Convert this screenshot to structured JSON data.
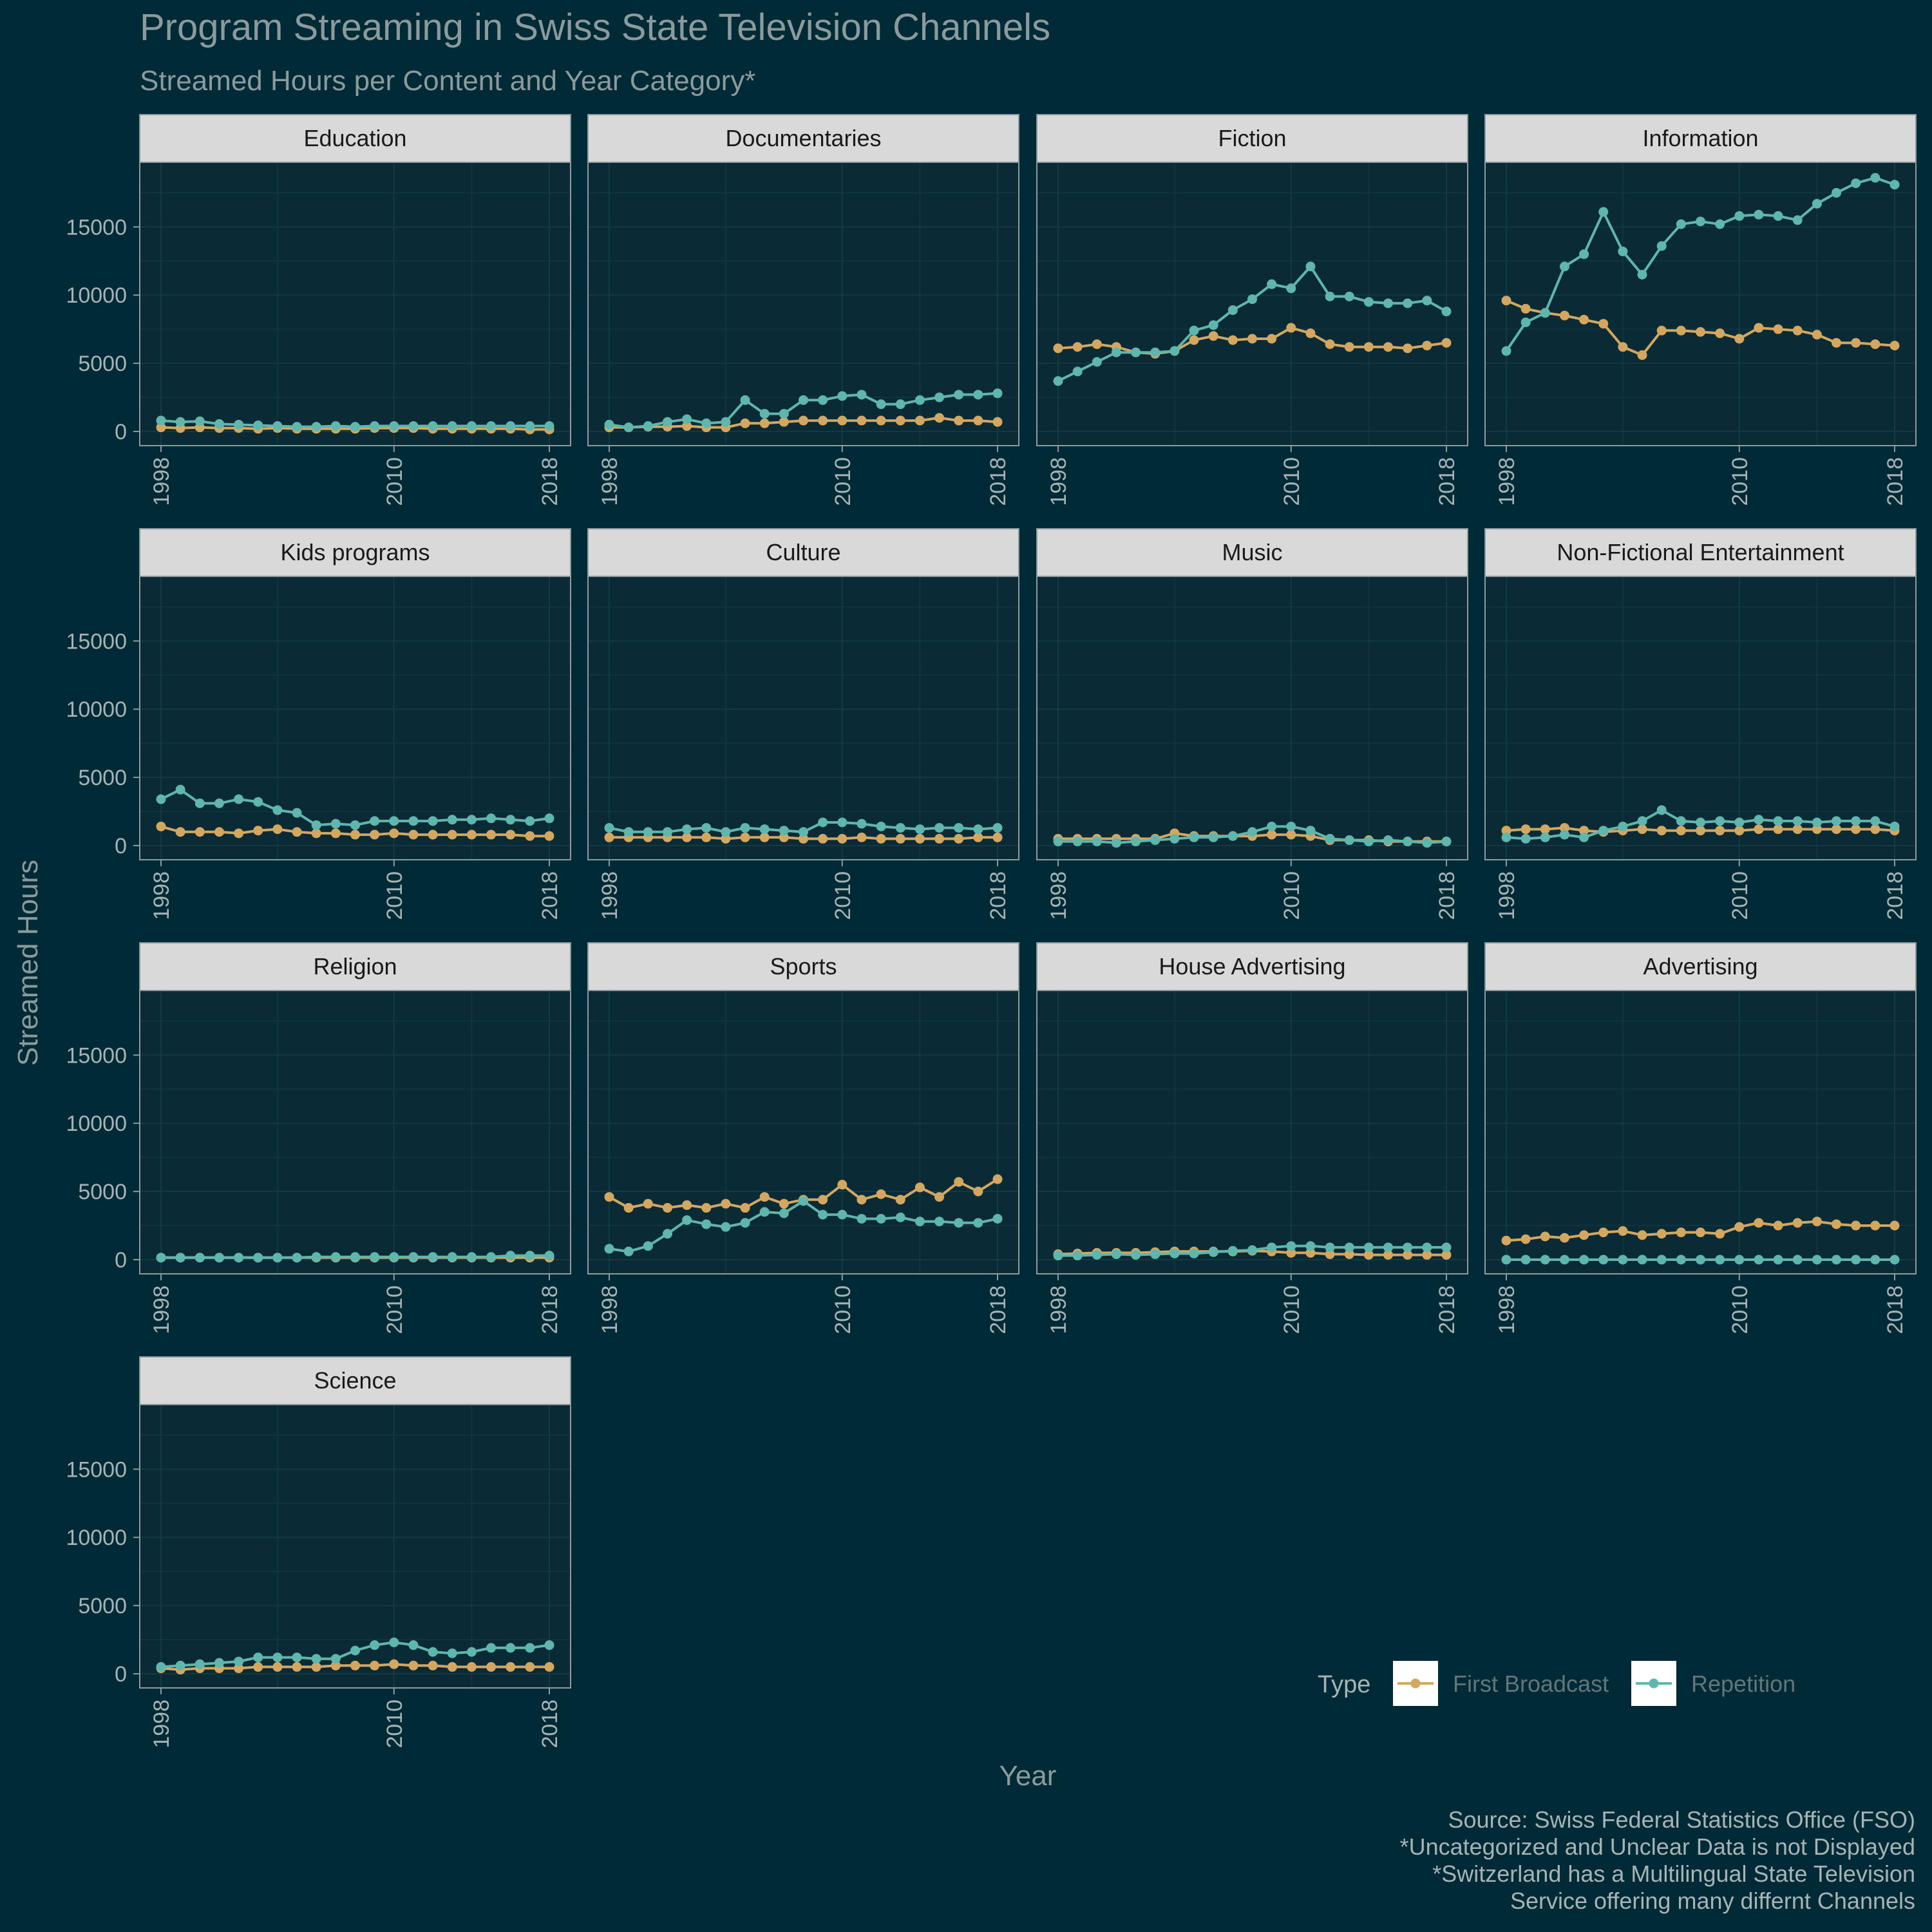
{
  "chart_data": {
    "type": "line",
    "title": "Program Streaming in Swiss State Television Channels",
    "subtitle": "Streamed Hours per Content and Year Category*",
    "xlabel": "Year",
    "ylabel": "Streamed Hours",
    "x_ticks": [
      "1998",
      "2010",
      "2018"
    ],
    "y_ticks": [
      "0",
      "5000",
      "10000",
      "15000"
    ],
    "xlim": [
      1998,
      2018
    ],
    "ylim": [
      0,
      18700
    ],
    "grid": true,
    "legend": {
      "title": "Type",
      "placement": "bottom-right",
      "entries": [
        "First Broadcast",
        "Repetition"
      ]
    },
    "colors": {
      "background": "#002b36",
      "panel": "#0a2b36",
      "strip": "#d9d9d9",
      "first_broadcast": "#d4a760",
      "repetition": "#5fb6ad",
      "text": "#8b9a9c"
    },
    "caption": [
      "Source: Swiss Federal Statistics Office (FSO)",
      "*Uncategorized and Unclear Data is not Displayed",
      "*Switzerland has a Multilingual State Television",
      "Service offering many differnt Channels"
    ],
    "x": [
      1998,
      1999,
      2000,
      2001,
      2002,
      2003,
      2004,
      2005,
      2006,
      2007,
      2008,
      2009,
      2010,
      2011,
      2012,
      2013,
      2014,
      2015,
      2016,
      2017,
      2018
    ],
    "facets": [
      {
        "name": "Education",
        "series": [
          {
            "name": "First Broadcast",
            "values": [
              300,
              250,
              300,
              250,
              250,
              200,
              250,
              200,
              200,
              200,
              200,
              250,
              250,
              250,
              200,
              200,
              200,
              200,
              200,
              150,
              150
            ]
          },
          {
            "name": "Repetition",
            "values": [
              800,
              700,
              750,
              550,
              500,
              450,
              400,
              350,
              350,
              400,
              350,
              400,
              400,
              400,
              400,
              400,
              400,
              400,
              400,
              400,
              400
            ]
          }
        ]
      },
      {
        "name": "Documentaries",
        "series": [
          {
            "name": "First Broadcast",
            "values": [
              300,
              300,
              350,
              350,
              400,
              300,
              300,
              600,
              600,
              700,
              800,
              800,
              800,
              800,
              800,
              800,
              800,
              1000,
              800,
              800,
              700
            ]
          },
          {
            "name": "Repetition",
            "values": [
              500,
              300,
              400,
              700,
              900,
              600,
              700,
              2300,
              1300,
              1300,
              2300,
              2300,
              2600,
              2700,
              2000,
              2000,
              2300,
              2500,
              2700,
              2700,
              2800
            ]
          }
        ]
      },
      {
        "name": "Fiction",
        "series": [
          {
            "name": "First Broadcast",
            "values": [
              6100,
              6200,
              6400,
              6200,
              5800,
              5700,
              5900,
              6700,
              7000,
              6700,
              6800,
              6800,
              7600,
              7200,
              6400,
              6200,
              6200,
              6200,
              6100,
              6300,
              6500
            ]
          },
          {
            "name": "Repetition",
            "values": [
              3700,
              4400,
              5100,
              5800,
              5800,
              5800,
              5900,
              7400,
              7800,
              8900,
              9700,
              10800,
              10500,
              12100,
              9900,
              9900,
              9500,
              9400,
              9400,
              9600,
              8800
            ]
          }
        ]
      },
      {
        "name": "Information",
        "series": [
          {
            "name": "First Broadcast",
            "values": [
              9600,
              9000,
              8700,
              8500,
              8200,
              7900,
              6200,
              5600,
              7400,
              7400,
              7300,
              7200,
              6800,
              7600,
              7500,
              7400,
              7100,
              6500,
              6500,
              6400,
              6300
            ]
          },
          {
            "name": "Repetition",
            "values": [
              5900,
              8000,
              8700,
              12100,
              13000,
              16100,
              13200,
              11500,
              13600,
              15200,
              15400,
              15200,
              15800,
              15900,
              15800,
              15500,
              16700,
              17500,
              18200,
              18600,
              18100
            ]
          }
        ]
      },
      {
        "name": "Kids programs",
        "series": [
          {
            "name": "First Broadcast",
            "values": [
              1400,
              1000,
              1000,
              1000,
              900,
              1100,
              1200,
              1000,
              900,
              900,
              800,
              800,
              900,
              800,
              800,
              800,
              800,
              800,
              800,
              700,
              700
            ]
          },
          {
            "name": "Repetition",
            "values": [
              3400,
              4100,
              3100,
              3100,
              3400,
              3200,
              2600,
              2400,
              1500,
              1600,
              1500,
              1800,
              1800,
              1800,
              1800,
              1900,
              1900,
              2000,
              1900,
              1800,
              2000
            ]
          }
        ]
      },
      {
        "name": "Culture",
        "series": [
          {
            "name": "First Broadcast",
            "values": [
              600,
              600,
              600,
              600,
              600,
              600,
              500,
              600,
              600,
              600,
              500,
              500,
              500,
              600,
              500,
              500,
              500,
              500,
              500,
              600,
              600
            ]
          },
          {
            "name": "Repetition",
            "values": [
              1300,
              1000,
              1000,
              1000,
              1200,
              1300,
              1000,
              1300,
              1200,
              1100,
              1000,
              1700,
              1700,
              1600,
              1400,
              1300,
              1200,
              1300,
              1300,
              1200,
              1300
            ]
          }
        ]
      },
      {
        "name": "Music",
        "series": [
          {
            "name": "First Broadcast",
            "values": [
              500,
              500,
              500,
              500,
              500,
              500,
              900,
              700,
              700,
              700,
              700,
              800,
              800,
              700,
              400,
              400,
              400,
              300,
              300,
              300,
              300
            ]
          },
          {
            "name": "Repetition",
            "values": [
              300,
              300,
              300,
              200,
              300,
              400,
              500,
              600,
              600,
              700,
              1000,
              1400,
              1400,
              1100,
              500,
              400,
              300,
              400,
              300,
              200,
              300
            ]
          }
        ]
      },
      {
        "name": "Non-Fictional Entertainment",
        "series": [
          {
            "name": "First Broadcast",
            "values": [
              1100,
              1200,
              1200,
              1300,
              1100,
              1000,
              1100,
              1200,
              1100,
              1100,
              1100,
              1100,
              1100,
              1200,
              1200,
              1200,
              1200,
              1200,
              1200,
              1200,
              1100
            ]
          },
          {
            "name": "Repetition",
            "values": [
              600,
              500,
              600,
              800,
              600,
              1100,
              1400,
              1800,
              2600,
              1800,
              1700,
              1800,
              1700,
              1900,
              1800,
              1800,
              1700,
              1800,
              1800,
              1800,
              1400
            ]
          }
        ]
      },
      {
        "name": "Religion",
        "series": [
          {
            "name": "First Broadcast",
            "values": [
              150,
              150,
              150,
              150,
              150,
              150,
              150,
              150,
              150,
              150,
              150,
              150,
              150,
              150,
              150,
              150,
              150,
              150,
              150,
              150,
              150
            ]
          },
          {
            "name": "Repetition",
            "values": [
              150,
              150,
              150,
              150,
              150,
              150,
              150,
              150,
              200,
              200,
              200,
              200,
              200,
              200,
              200,
              200,
              200,
              200,
              300,
              300,
              300
            ]
          }
        ]
      },
      {
        "name": "Sports",
        "series": [
          {
            "name": "First Broadcast",
            "values": [
              4600,
              3800,
              4100,
              3800,
              4000,
              3800,
              4100,
              3800,
              4600,
              4100,
              4400,
              4400,
              5500,
              4400,
              4800,
              4400,
              5300,
              4600,
              5700,
              5000,
              5900
            ]
          },
          {
            "name": "Repetition",
            "values": [
              800,
              600,
              1000,
              1900,
              2900,
              2600,
              2400,
              2700,
              3500,
              3400,
              4300,
              3300,
              3300,
              3000,
              3000,
              3100,
              2800,
              2800,
              2700,
              2700,
              3000
            ]
          }
        ]
      },
      {
        "name": "House Advertising",
        "series": [
          {
            "name": "First Broadcast",
            "values": [
              400,
              450,
              500,
              500,
              500,
              550,
              600,
              600,
              600,
              600,
              650,
              600,
              500,
              500,
              400,
              400,
              350,
              350,
              350,
              350,
              350
            ]
          },
          {
            "name": "Repetition",
            "values": [
              300,
              300,
              350,
              400,
              350,
              400,
              450,
              450,
              550,
              650,
              700,
              900,
              1000,
              1000,
              900,
              900,
              900,
              900,
              900,
              900,
              900
            ]
          }
        ]
      },
      {
        "name": "Advertising",
        "series": [
          {
            "name": "First Broadcast",
            "values": [
              1400,
              1500,
              1700,
              1600,
              1800,
              2000,
              2100,
              1800,
              1900,
              2000,
              2000,
              1900,
              2400,
              2700,
              2500,
              2700,
              2800,
              2600,
              2500,
              2500,
              2500
            ]
          },
          {
            "name": "Repetition",
            "values": [
              0,
              0,
              0,
              0,
              0,
              0,
              0,
              0,
              0,
              0,
              0,
              0,
              0,
              0,
              0,
              0,
              0,
              0,
              0,
              0,
              0
            ]
          }
        ]
      },
      {
        "name": "Science",
        "series": [
          {
            "name": "First Broadcast",
            "values": [
              400,
              300,
              400,
              400,
              400,
              500,
              500,
              500,
              500,
              600,
              600,
              600,
              700,
              600,
              600,
              500,
              500,
              500,
              500,
              500,
              500
            ]
          },
          {
            "name": "Repetition",
            "values": [
              500,
              600,
              700,
              800,
              900,
              1200,
              1200,
              1200,
              1100,
              1100,
              1700,
              2100,
              2300,
              2100,
              1600,
              1500,
              1600,
              1900,
              1900,
              1900,
              2100
            ]
          }
        ]
      }
    ]
  }
}
